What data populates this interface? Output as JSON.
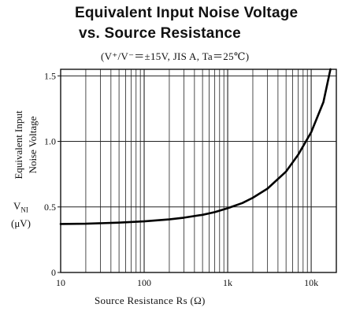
{
  "header": {
    "title_line_1": "Equivalent Input Noise Voltage",
    "title_line_2": "vs. Source Resistance",
    "subtitle": "(V⁺/V⁻＝±15V,  JIS A,  Ta＝25℃)"
  },
  "axes": {
    "ylabel_line_1": "Equivalent Input",
    "ylabel_line_2": "Noise Voltage",
    "ysymbol_main": "V",
    "ysymbol_sub": "NI",
    "yunit": "(μV)",
    "xlabel": "Source Resistance   Rs (Ω)"
  },
  "chart_data": {
    "type": "line",
    "title": "Equivalent Input Noise Voltage vs. Source Resistance",
    "subtitle": "(V⁺/V⁻＝±15V,  JIS A,  Ta＝25℃)",
    "xlabel": "Source Resistance Rs (Ω)",
    "ylabel": "Equivalent Input Noise Voltage VNI (μV)",
    "x_scale": "log",
    "xlim": [
      10,
      20000
    ],
    "ylim": [
      0,
      1.55
    ],
    "x_ticks": [
      10,
      100,
      1000,
      10000
    ],
    "x_tick_labels": [
      "10",
      "100",
      "1k",
      "10k"
    ],
    "y_ticks": [
      0,
      0.5,
      1.0,
      1.5
    ],
    "y_tick_labels": [
      "0",
      "0.5",
      "1.0",
      "1.5"
    ],
    "grid": true,
    "series": [
      {
        "x": [
          10,
          20,
          50,
          100,
          200,
          300,
          500,
          700,
          1000,
          1500,
          2000,
          3000,
          5000,
          7000,
          10000,
          14000,
          17000
        ],
        "y": [
          0.37,
          0.372,
          0.38,
          0.39,
          0.405,
          0.418,
          0.44,
          0.46,
          0.49,
          0.53,
          0.57,
          0.64,
          0.77,
          0.9,
          1.07,
          1.3,
          1.55
        ]
      }
    ]
  }
}
